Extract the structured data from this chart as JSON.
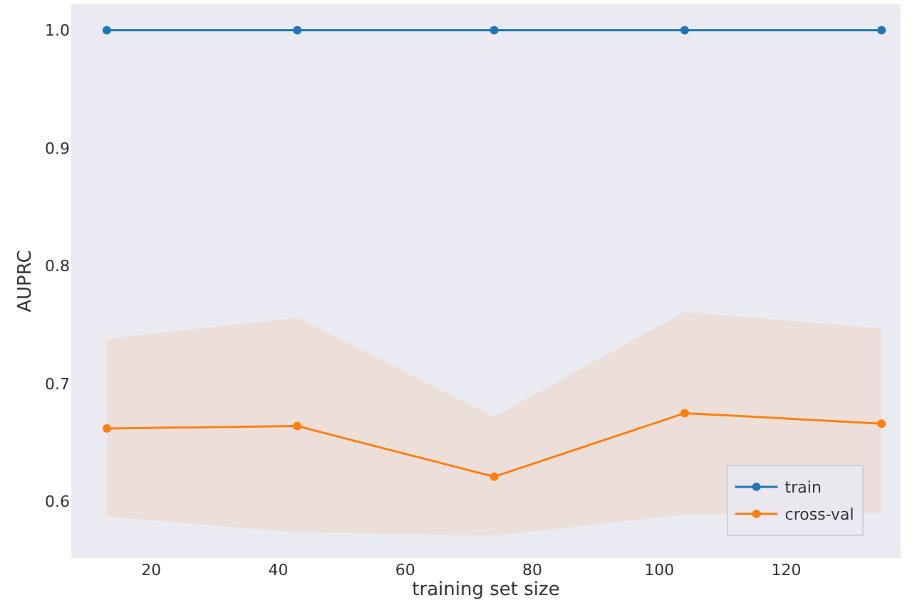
{
  "chart_data": {
    "type": "line",
    "xlabel": "training set size",
    "ylabel": "AUPRC",
    "x": [
      13,
      43,
      74,
      104,
      135
    ],
    "series": [
      {
        "name": "train",
        "color": "#1f77b4",
        "values": [
          1.0,
          1.0,
          1.0,
          1.0,
          1.0
        ]
      },
      {
        "name": "cross-val",
        "color": "#ff7f0e",
        "values": [
          0.662,
          0.664,
          0.621,
          0.675,
          0.666
        ],
        "lower": [
          0.587,
          0.574,
          0.571,
          0.589,
          0.59
        ],
        "upper": [
          0.738,
          0.756,
          0.672,
          0.761,
          0.747
        ]
      }
    ],
    "xlim": [
      7.4,
      138
    ],
    "ylim": [
      0.552,
      1.022
    ],
    "xticks": [
      20,
      40,
      60,
      80,
      100,
      120
    ],
    "yticks": [
      0.6,
      0.7,
      0.8,
      0.9,
      {
        "value": 1,
        "label": "1.0"
      }
    ],
    "grid": false,
    "legend": "bottom right",
    "marker": "circle",
    "line_style": "solid"
  }
}
